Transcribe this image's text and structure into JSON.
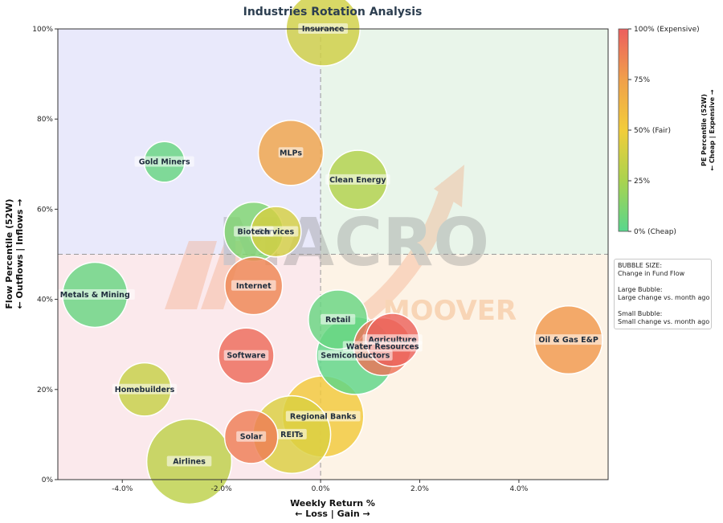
{
  "chart_data": {
    "type": "scatter",
    "title": "Industries Rotation Analysis",
    "xlabel": "Weekly Return %",
    "xlabel_sub": "← Loss | Gain →",
    "ylabel": "Flow Percentile (52W)",
    "ylabel_sub": "← Outflows | Inflows →",
    "xlim": [
      -5.3,
      5.8
    ],
    "ylim": [
      0,
      100
    ],
    "x_ticks": [
      -4,
      -2,
      0,
      2,
      4
    ],
    "x_tick_labels": [
      "-4.0%",
      "-2.0%",
      "0.0%",
      "2.0%",
      "4.0%"
    ],
    "y_ticks": [
      0,
      20,
      40,
      60,
      80,
      100
    ],
    "y_tick_labels": [
      "0%",
      "20%",
      "40%",
      "60%",
      "80%",
      "100%"
    ],
    "reference_lines": {
      "x": 0,
      "y": 50
    },
    "grid": false,
    "quadrant_colors": {
      "top_left": "#e9e9fb",
      "top_right": "#e9f5ea",
      "bottom_left": "#fbe9ec",
      "bottom_right": "#fdf3e6"
    },
    "colorbar": {
      "label": "PE Percentile (52W)",
      "label_sub": "← Cheap | Expensive →",
      "ticks": [
        0,
        25,
        50,
        75,
        100
      ],
      "tick_labels": [
        "0% (Cheap)",
        "25%",
        "50% (Fair)",
        "75%",
        "100% (Expensive)"
      ],
      "colors": [
        "#58d68d",
        "#a9d34f",
        "#f2cd3a",
        "#f0a04b",
        "#ec5e5e"
      ]
    },
    "size_note": [
      "BUBBLE SIZE:",
      "Change in Fund Flow",
      "",
      "Large Bubble:",
      "Large change vs. month ago",
      "",
      "Small Bubble:",
      "Small change vs. month ago"
    ],
    "watermark": "MACRO MOOVER",
    "points": [
      {
        "label": "Insurance",
        "x": 0.05,
        "y": 100,
        "pe": 38,
        "size": 1.0
      },
      {
        "label": "Gold Miners",
        "x": -3.15,
        "y": 70.5,
        "pe": 5,
        "size": 0.55
      },
      {
        "label": "MLPs",
        "x": -0.6,
        "y": 72.5,
        "pe": 72,
        "size": 0.88
      },
      {
        "label": "Clean Energy",
        "x": 0.75,
        "y": 66.5,
        "pe": 28,
        "size": 0.8
      },
      {
        "label": "Services",
        "x": -0.9,
        "y": 55,
        "pe": 40,
        "size": 0.68
      },
      {
        "label": "Biotech",
        "x": -1.35,
        "y": 55,
        "pe": 12,
        "size": 0.8
      },
      {
        "label": "Metals & Mining",
        "x": -4.55,
        "y": 41,
        "pe": 5,
        "size": 0.88
      },
      {
        "label": "Internet",
        "x": -1.35,
        "y": 43,
        "pe": 85,
        "size": 0.78
      },
      {
        "label": "Retail",
        "x": 0.35,
        "y": 35.5,
        "pe": 5,
        "size": 0.8
      },
      {
        "label": "Agriculture",
        "x": 1.45,
        "y": 31,
        "pe": 98,
        "size": 0.72
      },
      {
        "label": "Water Resources",
        "x": 1.25,
        "y": 29.5,
        "pe": 92,
        "size": 0.78
      },
      {
        "label": "Semiconductors",
        "x": 0.7,
        "y": 27.5,
        "pe": 2,
        "size": 1.05
      },
      {
        "label": "Oil & Gas E&P",
        "x": 5.0,
        "y": 31,
        "pe": 78,
        "size": 0.92
      },
      {
        "label": "Software",
        "x": -1.5,
        "y": 27.5,
        "pe": 95,
        "size": 0.75
      },
      {
        "label": "Homebuilders",
        "x": -3.55,
        "y": 20,
        "pe": 35,
        "size": 0.72
      },
      {
        "label": "Regional Banks",
        "x": 0.05,
        "y": 14,
        "pe": 52,
        "size": 1.1
      },
      {
        "label": "REITs",
        "x": -0.58,
        "y": 10,
        "pe": 42,
        "size": 1.05
      },
      {
        "label": "Solar",
        "x": -1.4,
        "y": 9.5,
        "pe": 88,
        "size": 0.72
      },
      {
        "label": "Airlines",
        "x": -2.65,
        "y": 4,
        "pe": 32,
        "size": 1.15
      }
    ]
  }
}
